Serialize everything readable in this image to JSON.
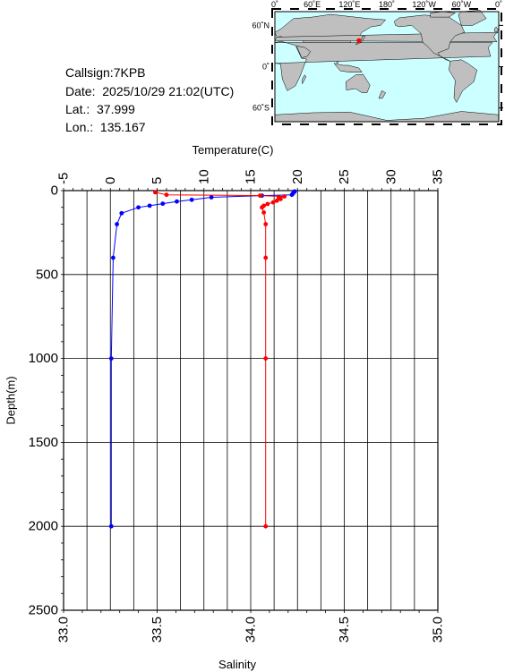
{
  "info": {
    "callsign": "Callsign:7KPB",
    "date": "Date:  2025/10/29 21:02(UTC)",
    "lat": "Lat.:  37.999",
    "lon": "Lon.:  135.167"
  },
  "map": {
    "top_labels": [
      "0˚",
      "60˚E",
      "120˚E",
      "180˚",
      "120˚W",
      "60˚W",
      "0˚"
    ],
    "left_labels": [
      "60˚N",
      "0˚",
      "60˚S"
    ],
    "ocean_color": "#ccffff",
    "land_color": "#bfbfbf",
    "marker_color": "#ff0000",
    "marker": {
      "lat": 37.999,
      "lon": 135.167
    }
  },
  "chart_data": {
    "type": "line",
    "ylabel": "Depth(m)",
    "ylim": [
      0,
      2500
    ],
    "y_ticks": [
      0,
      500,
      1000,
      1500,
      2000,
      2500
    ],
    "y_reversed": true,
    "top_axis": {
      "label": "Temperature(C)",
      "lim": [
        -5,
        35
      ],
      "ticks": [
        -5,
        0,
        5,
        10,
        15,
        20,
        25,
        30,
        35
      ]
    },
    "bottom_axis": {
      "label": "Salinity",
      "lim": [
        33.0,
        35.0
      ],
      "ticks": [
        "33.0",
        "33.5",
        "34.0",
        "34.5",
        "35.0"
      ]
    },
    "grid": true,
    "series": [
      {
        "axis": "top",
        "color": "#0000ff",
        "points": [
          [
            19.7,
            5
          ],
          [
            19.6,
            10
          ],
          [
            19.5,
            18
          ],
          [
            19.4,
            25
          ],
          [
            16.2,
            30
          ],
          [
            10.8,
            40
          ],
          [
            8.7,
            55
          ],
          [
            7.1,
            65
          ],
          [
            5.6,
            78
          ],
          [
            4.2,
            90
          ],
          [
            3.0,
            100
          ],
          [
            1.2,
            135
          ],
          [
            0.7,
            200
          ],
          [
            0.3,
            400
          ],
          [
            0.1,
            1000
          ],
          [
            0.1,
            2000
          ]
        ]
      },
      {
        "axis": "bottom",
        "color": "#ff0000",
        "points": [
          [
            33.49,
            10
          ],
          [
            33.55,
            25
          ],
          [
            34.05,
            30
          ],
          [
            34.18,
            35
          ],
          [
            34.15,
            40
          ],
          [
            34.16,
            50
          ],
          [
            34.14,
            60
          ],
          [
            34.12,
            70
          ],
          [
            34.09,
            80
          ],
          [
            34.07,
            90
          ],
          [
            34.06,
            100
          ],
          [
            34.07,
            130
          ],
          [
            34.08,
            200
          ],
          [
            34.08,
            400
          ],
          [
            34.08,
            1000
          ],
          [
            34.08,
            2000
          ]
        ]
      }
    ]
  }
}
